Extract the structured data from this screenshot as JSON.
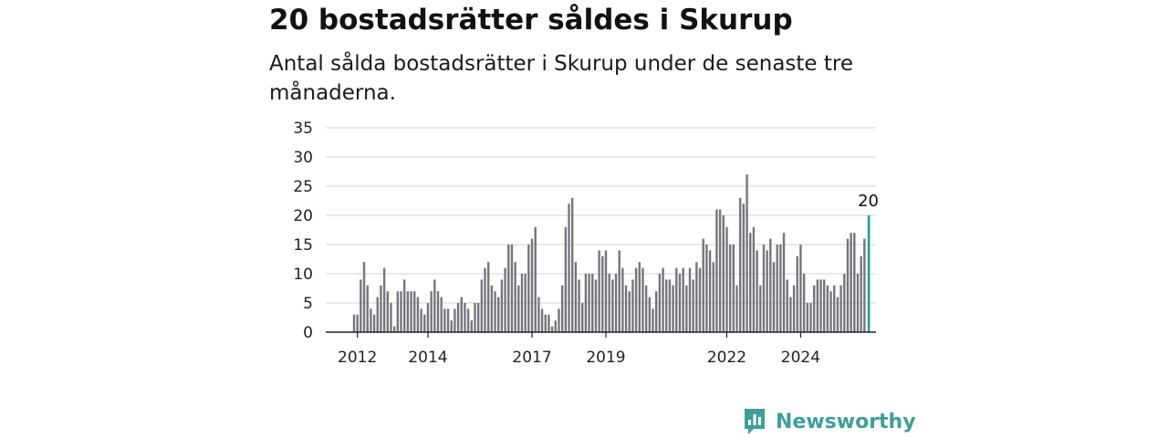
{
  "title": "20 bostadsrätter såldes i Skurup",
  "subtitle": "Antal sålda bostadsrätter i Skurup under de senaste tre månaderna.",
  "brand": {
    "name": "Newsworthy",
    "color": "#3f9e9a"
  },
  "chart_data": {
    "type": "bar",
    "title": "20 bostadsrätter såldes i Skurup",
    "subtitle": "Antal sålda bostadsrätter i Skurup under de senaste tre månaderna.",
    "xlabel": "",
    "ylabel": "",
    "ylim": [
      0,
      35
    ],
    "yticks": [
      0,
      5,
      10,
      15,
      20,
      25,
      30,
      35
    ],
    "xtick_labels": [
      {
        "label": "2012",
        "index": 1
      },
      {
        "label": "2014",
        "index": 22
      },
      {
        "label": "2017",
        "index": 53
      },
      {
        "label": "2019",
        "index": 75
      },
      {
        "label": "2022",
        "index": 111
      },
      {
        "label": "2024",
        "index": 133
      }
    ],
    "grid": true,
    "bar_color": "#76757d",
    "highlight_color": "#1e9e94",
    "highlight_label": "20",
    "values": [
      3,
      3,
      9,
      12,
      8,
      4,
      3,
      6,
      8,
      11,
      7,
      5,
      1,
      7,
      7,
      9,
      7,
      7,
      7,
      6,
      4,
      3,
      5,
      7,
      9,
      7,
      6,
      4,
      4,
      2,
      4,
      5,
      6,
      5,
      4,
      2,
      5,
      5,
      9,
      11,
      12,
      8,
      7,
      6,
      9,
      11,
      15,
      15,
      12,
      8,
      10,
      10,
      15,
      16,
      18,
      6,
      4,
      3,
      3,
      1,
      2,
      4,
      8,
      18,
      22,
      23,
      12,
      9,
      5,
      10,
      10,
      10,
      9,
      14,
      13,
      14,
      10,
      9,
      10,
      14,
      11,
      8,
      7,
      9,
      11,
      12,
      11,
      8,
      6,
      4,
      7,
      10,
      11,
      9,
      9,
      8,
      11,
      10,
      11,
      8,
      11,
      9,
      12,
      11,
      16,
      15,
      14,
      12,
      21,
      21,
      20,
      18,
      15,
      15,
      8,
      23,
      22,
      27,
      17,
      18,
      14,
      8,
      15,
      14,
      16,
      12,
      15,
      15,
      17,
      9,
      6,
      8,
      13,
      15,
      10,
      5,
      5,
      8,
      9,
      9,
      9,
      8,
      7,
      8,
      6,
      8,
      10,
      16,
      17,
      17,
      10,
      13,
      16,
      20
    ]
  }
}
